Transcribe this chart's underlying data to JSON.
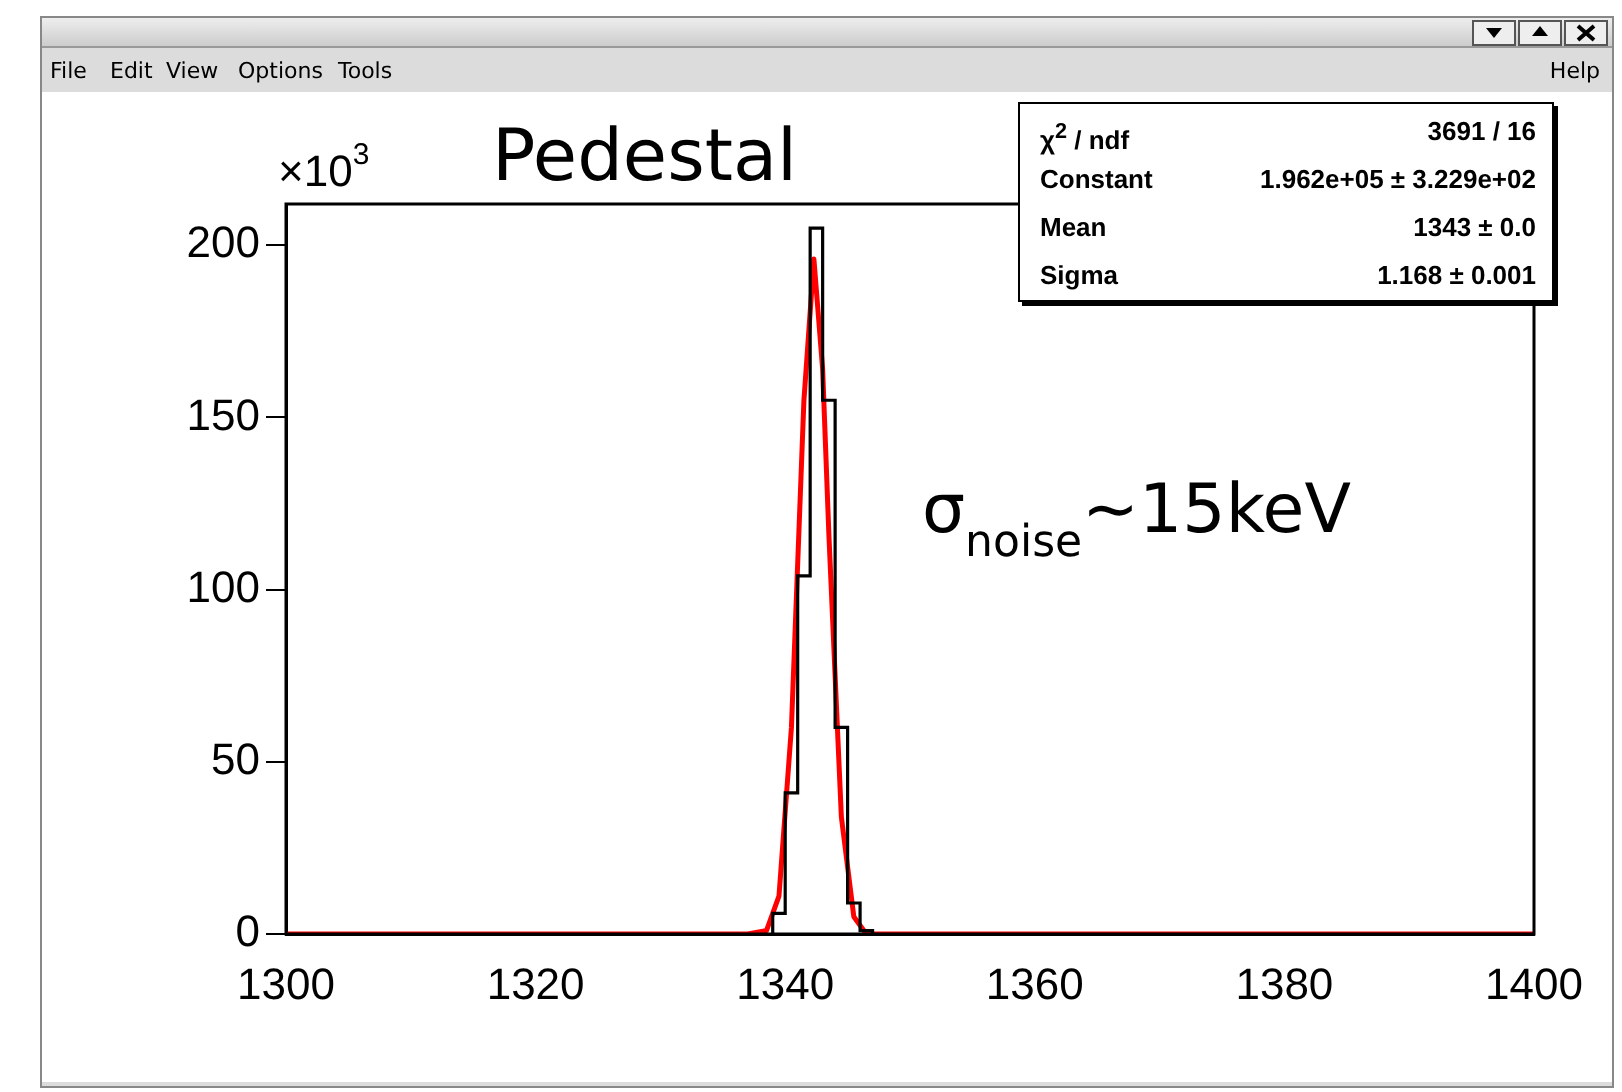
{
  "chart_data": {
    "type": "histogram",
    "title": "Pedestal",
    "bins": [
      1339,
      1340,
      1341,
      1342,
      1343,
      1344,
      1345,
      1346,
      1347
    ],
    "values": [
      6,
      41,
      104,
      205,
      155,
      60,
      9,
      1
    ],
    "color": "#000000",
    "series": [
      {
        "type": "line",
        "color": "#ff0000",
        "x": [
          1300,
          1337,
          1338.5,
          1339.5,
          1340.5,
          1341.5,
          1342.3,
          1343,
          1343.5,
          1344.5,
          1345.5,
          1346.5,
          1348,
          1400
        ],
        "values": [
          0,
          0,
          1,
          11,
          60,
          155,
          196,
          164,
          116,
          34,
          5,
          0,
          0,
          0
        ]
      }
    ],
    "xlim": [
      1300,
      1400
    ],
    "xticks": [
      1300,
      1320,
      1340,
      1360,
      1380,
      1400
    ],
    "ylim": [
      0,
      212
    ],
    "yticks": [
      0,
      50,
      100,
      150,
      200
    ],
    "grid": false,
    "legend": false,
    "marker": "none",
    "line_style": "solid",
    "annotations": [
      "×10$^{3}$",
      "σ$_{noise}$~15keV",
      "χ$^{2}$ / ndf",
      "3691 / 16",
      "Constant",
      "1.962e+05 ± 3.229e+02",
      "Mean",
      "1343 ± 0.0",
      "Sigma",
      "1.168 ± 0.001",
      "File",
      "Edit",
      "View",
      "Options",
      "Tools",
      "Help"
    ]
  }
}
